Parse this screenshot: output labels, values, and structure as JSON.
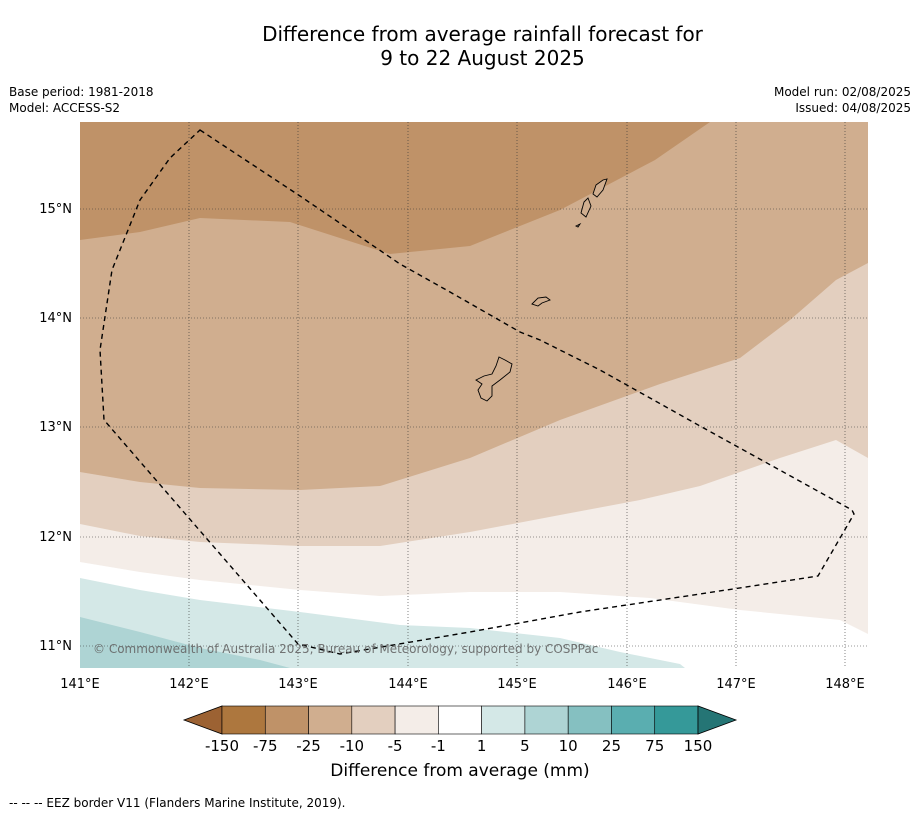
{
  "title_line1": "Difference from average rainfall forecast for",
  "title_line2": "9 to 22 August 2025",
  "base_period": "Base period: 1981-2018",
  "model": "Model: ACCESS-S2",
  "model_run": "Model run: 02/08/2025",
  "issued": "Issued: 04/08/2025",
  "copyright": "© Commonwealth of Australia 2025, Bureau of Meteorology, supported by COSPPac",
  "lat_labels": [
    "15°N",
    "14°N",
    "13°N",
    "12°N",
    "11°N"
  ],
  "lon_labels": [
    "141°E",
    "142°E",
    "143°E",
    "144°E",
    "145°E",
    "146°E",
    "147°E",
    "148°E"
  ],
  "colorbar": {
    "title": "Difference from average (mm)",
    "ticks": [
      "-150",
      "-75",
      "-25",
      "-10",
      "-5",
      "-1",
      "1",
      "5",
      "10",
      "25",
      "75",
      "150"
    ],
    "colors": [
      "#9c6233",
      "#ad773e",
      "#bf9268",
      "#d0ae8f",
      "#e3cfbf",
      "#f4ede8",
      "#ffffff",
      "#d4e8e7",
      "#aed4d4",
      "#85c0c1",
      "#5aaeb0",
      "#359999",
      "#257575"
    ]
  },
  "footnote": "-- -- -- EEZ border V11 (Flanders Marine Institute, 2019)."
}
